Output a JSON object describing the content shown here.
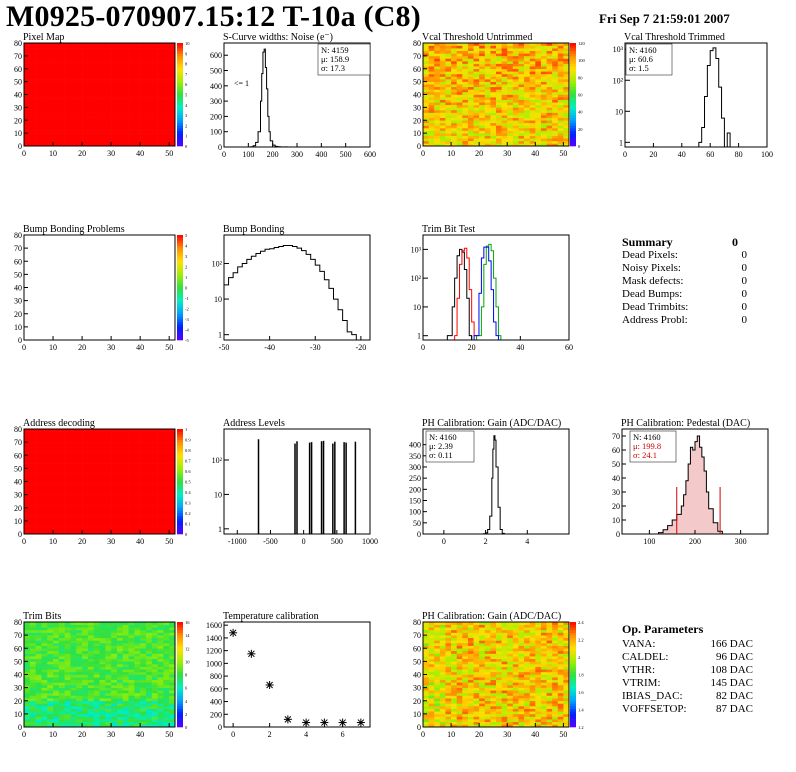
{
  "header": {
    "title": "M0925-070907.15:12 T-10a (C8)",
    "datetime": "Fri Sep  7 21:59:01 2007"
  },
  "colors": {
    "jet": [
      "#5a00ff",
      "#0020ff",
      "#00a0ff",
      "#00f0c0",
      "#30e040",
      "#a0f000",
      "#ffe000",
      "#ff9000",
      "#ff0000"
    ]
  },
  "panels": {
    "pixel_map": {
      "title": "Pixel Map",
      "xticks": [
        "0",
        "10",
        "20",
        "30",
        "40",
        "50"
      ],
      "yticks": [
        "0",
        "10",
        "20",
        "30",
        "40",
        "50",
        "60",
        "70",
        "80"
      ],
      "zticks": [
        "0",
        "1",
        "2",
        "3",
        "4",
        "5",
        "6",
        "7",
        "8",
        "9",
        "10"
      ]
    },
    "noise": {
      "title": "S-Curve widths: Noise (e⁻)",
      "xticks": [
        "0",
        "100",
        "200",
        "300",
        "400",
        "500",
        "600"
      ],
      "yticks": [
        "0",
        "100",
        "200",
        "300",
        "400",
        "500",
        "600"
      ],
      "annot": "<= 1",
      "stats": [
        "N: 4159",
        "μ: 158.9",
        "σ: 17.3"
      ]
    },
    "vcal_untrimmed": {
      "title": "Vcal Threshold Untrimmed",
      "xticks": [
        "0",
        "10",
        "20",
        "30",
        "40",
        "50"
      ],
      "yticks": [
        "0",
        "10",
        "20",
        "30",
        "40",
        "50",
        "60",
        "70",
        "80"
      ],
      "zticks": [
        "0",
        "20",
        "40",
        "60",
        "80",
        "100",
        "120"
      ]
    },
    "vcal_trimmed": {
      "title": "Vcal Threshold Trimmed",
      "xticks": [
        "0",
        "20",
        "40",
        "60",
        "80",
        "100"
      ],
      "yticks": [
        "1",
        "10",
        "10²",
        "10³"
      ],
      "stats": [
        "N: 4160",
        "μ: 60.6",
        "σ:  1.5"
      ]
    },
    "bump_problems": {
      "title": "Bump Bonding Problems",
      "xticks": [
        "0",
        "10",
        "20",
        "30",
        "40",
        "50"
      ],
      "yticks": [
        "0",
        "10",
        "20",
        "30",
        "40",
        "50",
        "60",
        "70",
        "80"
      ],
      "zticks": [
        "-5",
        "-4",
        "-3",
        "-2",
        "-1",
        "0",
        "1",
        "2",
        "3",
        "4",
        "5"
      ]
    },
    "bump_bonding": {
      "title": "Bump Bonding",
      "xticks": [
        "-50",
        "-40",
        "-30",
        "-20"
      ],
      "yticks": [
        "1",
        "10",
        "10²"
      ]
    },
    "trim_bit_test": {
      "title": "Trim Bit Test",
      "xticks": [
        "0",
        "20",
        "40",
        "60"
      ],
      "yticks": [
        "1",
        "10",
        "10²",
        "10³"
      ]
    },
    "address_decoding": {
      "title": "Address decoding",
      "xticks": [
        "0",
        "10",
        "20",
        "30",
        "40",
        "50"
      ],
      "yticks": [
        "0",
        "10",
        "20",
        "30",
        "40",
        "50",
        "60",
        "70",
        "80"
      ],
      "zticks": [
        "0",
        "0.1",
        "0.2",
        "0.3",
        "0.4",
        "0.5",
        "0.6",
        "0.7",
        "0.8",
        "0.9",
        "1"
      ]
    },
    "address_levels": {
      "title": "Address Levels",
      "xticks": [
        "-1000",
        "-500",
        "0",
        "500",
        "1000"
      ],
      "yticks": [
        "1",
        "10",
        "10²"
      ]
    },
    "ph_gain": {
      "title": "PH Calibration: Gain (ADC/DAC)",
      "xticks": [
        "0",
        "2",
        "4"
      ],
      "yticks": [
        "0",
        "50",
        "100",
        "150",
        "200",
        "250",
        "300",
        "350",
        "400"
      ],
      "stats": [
        "N: 4160",
        "μ: 2.39",
        "σ: 0.11"
      ]
    },
    "ph_pedestal": {
      "title": "PH Calibration: Pedestal (DAC)",
      "xticks": [
        "100",
        "200",
        "300"
      ],
      "yticks": [
        "0",
        "10",
        "20",
        "30",
        "40",
        "50",
        "60",
        "70"
      ],
      "stats": [
        "N: 4160",
        "μ: 199.8",
        "σ: 24.1"
      ]
    },
    "trim_bits": {
      "title": "Trim Bits",
      "xticks": [
        "0",
        "10",
        "20",
        "30",
        "40",
        "50"
      ],
      "yticks": [
        "0",
        "10",
        "20",
        "30",
        "40",
        "50",
        "60",
        "70",
        "80"
      ],
      "zticks": [
        "0",
        "2",
        "4",
        "6",
        "8",
        "10",
        "12",
        "14",
        "16"
      ]
    },
    "temperature": {
      "title": "Temperature calibration",
      "xticks": [
        "0",
        "2",
        "4",
        "6"
      ],
      "yticks": [
        "0",
        "200",
        "400",
        "600",
        "800",
        "1000",
        "1200",
        "1400",
        "1600"
      ]
    },
    "ph_gain_map": {
      "title": "PH Calibration: Gain (ADC/DAC)",
      "xticks": [
        "0",
        "10",
        "20",
        "30",
        "40",
        "50"
      ],
      "yticks": [
        "0",
        "10",
        "20",
        "30",
        "40",
        "50",
        "60",
        "70",
        "80"
      ],
      "zticks": [
        "1.2",
        "1.4",
        "1.6",
        "1.8",
        "2",
        "2.2",
        "2.4"
      ]
    }
  },
  "summary": {
    "title": "Summary",
    "total": "0",
    "rows": [
      {
        "label": "Dead Pixels:",
        "value": "0"
      },
      {
        "label": "Noisy Pixels:",
        "value": "0"
      },
      {
        "label": "Mask defects:",
        "value": "0"
      },
      {
        "label": "Dead Bumps:",
        "value": "0"
      },
      {
        "label": "Dead Trimbits:",
        "value": "0"
      },
      {
        "label": "Address Probl:",
        "value": "0"
      }
    ]
  },
  "op_params": {
    "title": "Op. Parameters",
    "rows": [
      {
        "label": "VANA:",
        "value": "166 DAC"
      },
      {
        "label": "CALDEL:",
        "value": "96 DAC"
      },
      {
        "label": "VTHR:",
        "value": "108 DAC"
      },
      {
        "label": "VTRIM:",
        "value": "145 DAC"
      },
      {
        "label": "IBIAS_DAC:",
        "value": "82 DAC"
      },
      {
        "label": "VOFFSETOP:",
        "value": "87 DAC"
      }
    ]
  },
  "chart_data": [
    {
      "type": "heatmap",
      "title": "Pixel Map",
      "xlim": [
        0,
        52
      ],
      "ylim": [
        0,
        80
      ],
      "zlim": [
        0,
        10
      ],
      "value_all_pixels": 10
    },
    {
      "type": "bar",
      "title": "S-Curve widths: Noise (e⁻)",
      "xlim": [
        0,
        600
      ],
      "ylim": [
        0,
        680
      ],
      "x": [
        100,
        110,
        120,
        130,
        140,
        150,
        155,
        160,
        165,
        170,
        175,
        180,
        185,
        190,
        200,
        210,
        220,
        230,
        240,
        250,
        260
      ],
      "values": [
        0,
        2,
        8,
        30,
        100,
        300,
        480,
        620,
        640,
        520,
        380,
        200,
        100,
        40,
        12,
        4,
        2,
        1,
        0,
        1,
        0
      ]
    },
    {
      "type": "heatmap",
      "title": "Vcal Threshold Untrimmed",
      "xlim": [
        0,
        52
      ],
      "ylim": [
        0,
        80
      ],
      "zlim": [
        0,
        130
      ]
    },
    {
      "type": "bar",
      "title": "Vcal Threshold Trimmed",
      "log_y": true,
      "xlim": [
        0,
        100
      ],
      "x": [
        52,
        54,
        56,
        58,
        60,
        62,
        64,
        66,
        68,
        70,
        72
      ],
      "values": [
        1,
        3,
        30,
        300,
        900,
        1100,
        500,
        60,
        6,
        0,
        2
      ]
    },
    {
      "type": "heatmap",
      "title": "Bump Bonding Problems",
      "xlim": [
        0,
        52
      ],
      "ylim": [
        0,
        80
      ],
      "zlim": [
        -5,
        5
      ],
      "value_all_pixels": 0
    },
    {
      "type": "bar",
      "title": "Bump Bonding",
      "log_y": true,
      "xlim": [
        -50,
        -18
      ],
      "x": [
        -50,
        -49,
        -48,
        -47,
        -46,
        -45,
        -44,
        -43,
        -42,
        -41,
        -40,
        -39,
        -38,
        -37,
        -36,
        -35,
        -34,
        -33,
        -32,
        -31,
        -30,
        -29,
        -28,
        -27,
        -26,
        -25,
        -24,
        -23,
        -22,
        -21
      ],
      "values": [
        25,
        40,
        55,
        80,
        100,
        130,
        160,
        190,
        220,
        250,
        260,
        280,
        300,
        320,
        320,
        300,
        270,
        230,
        180,
        130,
        90,
        60,
        35,
        20,
        10,
        5,
        2.5,
        1.2,
        1,
        0.5
      ]
    },
    {
      "type": "line",
      "title": "Trim Bit Test",
      "log_y": true,
      "xlim": [
        0,
        60
      ],
      "series": [
        {
          "color": "#000000",
          "x": [
            10,
            12,
            13,
            14,
            15,
            16,
            17,
            18,
            19
          ],
          "values": [
            1,
            10,
            100,
            600,
            1000,
            800,
            200,
            20,
            1
          ]
        },
        {
          "color": "#ff0000",
          "x": [
            13,
            14,
            15,
            16,
            17,
            18,
            19,
            20,
            21
          ],
          "values": [
            1,
            20,
            300,
            900,
            1100,
            500,
            40,
            3,
            1
          ]
        },
        {
          "color": "#00aa00",
          "x": [
            22,
            24,
            25,
            26,
            27,
            28,
            29,
            30,
            31
          ],
          "values": [
            1,
            10,
            300,
            1300,
            1500,
            900,
            100,
            10,
            1
          ]
        },
        {
          "color": "#0000ff",
          "x": [
            21,
            23,
            24,
            25,
            26,
            27,
            28,
            29,
            30
          ],
          "values": [
            1,
            30,
            500,
            1200,
            1200,
            400,
            40,
            3,
            1
          ]
        }
      ]
    },
    {
      "type": "heatmap",
      "title": "Address decoding",
      "xlim": [
        0,
        52
      ],
      "ylim": [
        0,
        80
      ],
      "zlim": [
        0,
        1
      ],
      "value_all_pixels": 1
    },
    {
      "type": "bar",
      "title": "Address Levels",
      "log_y": true,
      "xlim": [
        -1200,
        1000
      ],
      "x": [
        -680,
        -130,
        -100,
        90,
        120,
        270,
        300,
        440,
        470,
        610,
        640,
        780
      ],
      "values": [
        400,
        300,
        350,
        320,
        330,
        350,
        360,
        300,
        340,
        330,
        320,
        340
      ]
    },
    {
      "type": "bar",
      "title": "PH Calibration: Gain (ADC/DAC)",
      "xlim": [
        -1,
        6
      ],
      "ylim": [
        0,
        470
      ],
      "x": [
        1.9,
        2.0,
        2.1,
        2.2,
        2.3,
        2.35,
        2.4,
        2.45,
        2.5,
        2.6,
        2.7,
        2.8
      ],
      "values": [
        1,
        5,
        20,
        80,
        250,
        380,
        440,
        420,
        300,
        120,
        20,
        3
      ]
    },
    {
      "type": "bar",
      "title": "PH Calibration: Pedestal (DAC)",
      "xlim": [
        40,
        360
      ],
      "ylim": [
        0,
        75
      ],
      "x": [
        120,
        130,
        140,
        150,
        160,
        170,
        175,
        180,
        185,
        190,
        195,
        200,
        205,
        210,
        215,
        220,
        225,
        230,
        240,
        250
      ],
      "values": [
        1,
        3,
        6,
        10,
        14,
        20,
        28,
        38,
        50,
        62,
        60,
        66,
        70,
        62,
        55,
        45,
        30,
        18,
        8,
        2
      ]
    },
    {
      "type": "heatmap",
      "title": "Trim Bits",
      "xlim": [
        0,
        52
      ],
      "ylim": [
        0,
        80
      ],
      "zlim": [
        0,
        16
      ]
    },
    {
      "type": "scatter",
      "title": "Temperature calibration",
      "xlim": [
        -0.5,
        7.5
      ],
      "ylim": [
        0,
        1650
      ],
      "x": [
        0,
        1,
        2,
        3,
        4,
        5,
        6,
        7
      ],
      "values": [
        1480,
        1150,
        660,
        120,
        70,
        70,
        70,
        70
      ]
    },
    {
      "type": "heatmap",
      "title": "PH Calibration: Gain (ADC/DAC)",
      "xlim": [
        0,
        52
      ],
      "ylim": [
        0,
        80
      ],
      "zlim": [
        1.1,
        2.5
      ]
    }
  ]
}
